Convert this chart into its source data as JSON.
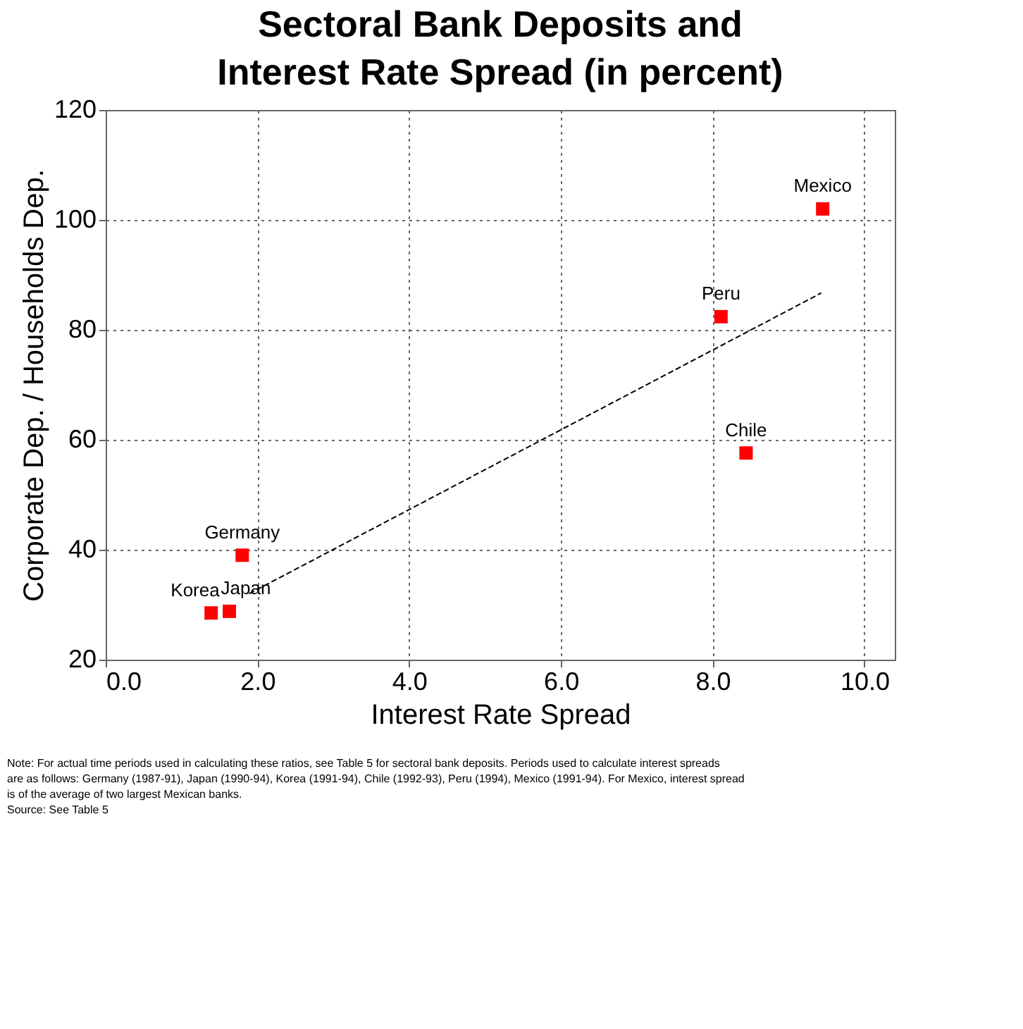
{
  "chart_data": {
    "type": "scatter",
    "title": "Sectoral Bank Deposits and Interest Rate Spread (in percent)",
    "xlabel": "Interest Rate Spread",
    "ylabel": "Corporate Dep. / Households Dep.",
    "series": [
      {
        "type": "scatter",
        "color": "#ff0000",
        "marker": "square",
        "x": [
          1.39,
          1.63,
          1.8,
          8.11,
          8.44,
          9.45
        ],
        "values": [
          28.5,
          28.8,
          39,
          82.4,
          57.6,
          102
        ]
      },
      {
        "type": "line",
        "color": "#000000",
        "marker": "none",
        "line_style": "dashed",
        "x": [
          1.89,
          9.43
        ],
        "values": [
          32,
          86.7
        ]
      }
    ],
    "annotations": [
      {
        "text": "Korea",
        "x": 1.39,
        "y": 28.5
      },
      {
        "text": "Japan",
        "x": 1.63,
        "y": 28.8
      },
      {
        "text": "Germany",
        "x": 1.8,
        "y": 39
      },
      {
        "text": "Peru",
        "x": 8.11,
        "y": 82.4
      },
      {
        "text": "Chile",
        "x": 8.44,
        "y": 57.6
      },
      {
        "text": "Mexico",
        "x": 9.45,
        "y": 102
      },
      "Note:  For actual time periods used in calculating these ratios, see Table 5  for sectoral bank deposits.  Periods used to calculate interest spreads are  as follows:  Germany (1987-91), Japan (1990-94), Korea (1991-94), Chile (1992-93), Peru (1994), Mexico (1991-94).   For Mexico, interest spread is of the average of two largest Mexican banks.",
      "Source:  See Table 5"
    ],
    "xlim": [
      0,
      10.4
    ],
    "xticks": [
      {
        "value": 0,
        "label": "0.0"
      },
      {
        "value": 2,
        "label": "2.0"
      },
      {
        "value": 4,
        "label": "4.0"
      },
      {
        "value": 6,
        "label": "6.0"
      },
      {
        "value": 8,
        "label": "8.0"
      },
      {
        "value": 10,
        "label": "10.0"
      }
    ],
    "ylim": [
      20,
      120
    ],
    "yticks": [
      20,
      40,
      60,
      80,
      100,
      120
    ],
    "grid": true
  }
}
